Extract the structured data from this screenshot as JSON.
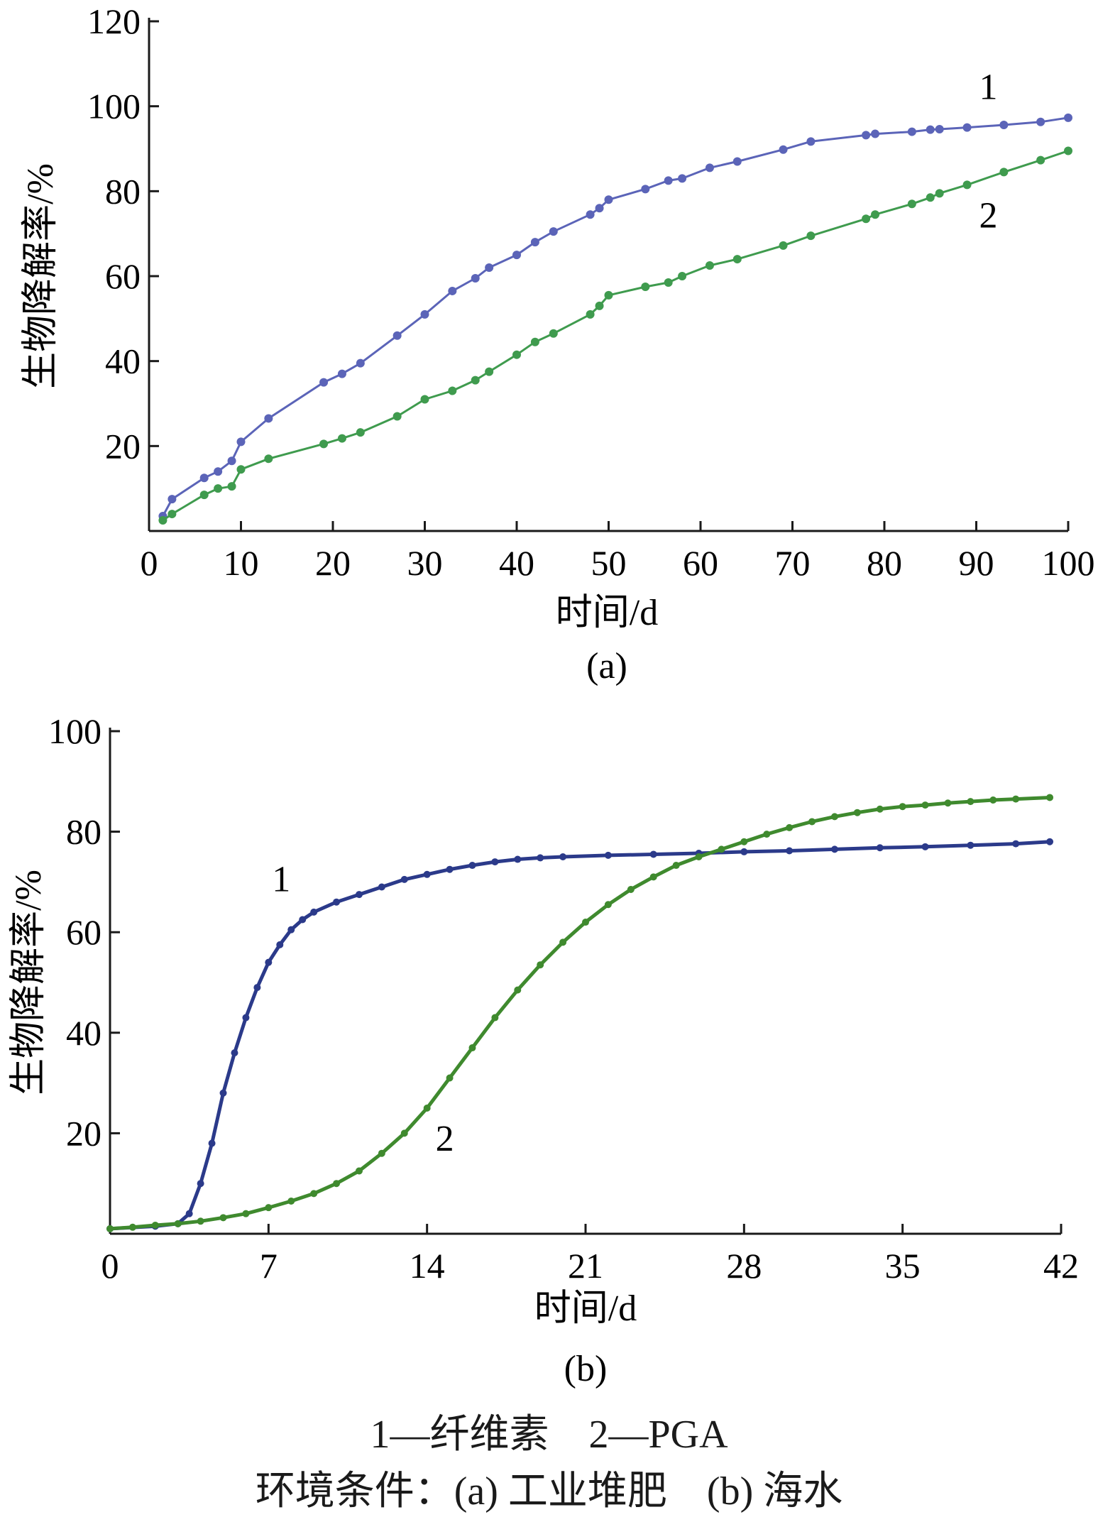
{
  "chart_data": [
    {
      "type": "line",
      "panel_label": "(a)",
      "xlabel": "时间/d",
      "ylabel": "生物降解率/%",
      "xlim": [
        0,
        100
      ],
      "ylim": [
        0,
        120
      ],
      "xticks": [
        "0",
        "10",
        "20",
        "30",
        "40",
        "50",
        "60",
        "70",
        "80",
        "90",
        "100"
      ],
      "yticks": [
        "20",
        "40",
        "60",
        "80",
        "100",
        "120"
      ],
      "grid": false,
      "series": [
        {
          "name": "1",
          "color": "#5b64b8",
          "markers": true,
          "points": [
            [
              1.5,
              3.5
            ],
            [
              2.5,
              7.5
            ],
            [
              6,
              12.5
            ],
            [
              7.5,
              14
            ],
            [
              9,
              16.5
            ],
            [
              10,
              21
            ],
            [
              13,
              26.5
            ],
            [
              19,
              35
            ],
            [
              21,
              37
            ],
            [
              23,
              39.5
            ],
            [
              27,
              46
            ],
            [
              30,
              51
            ],
            [
              33,
              56.5
            ],
            [
              35.5,
              59.5
            ],
            [
              37,
              62
            ],
            [
              40,
              65
            ],
            [
              42,
              68
            ],
            [
              44,
              70.5
            ],
            [
              48,
              74.5
            ],
            [
              49,
              76
            ],
            [
              50,
              78
            ],
            [
              54,
              80.5
            ],
            [
              56.5,
              82.5
            ],
            [
              58,
              83
            ],
            [
              61,
              85.5
            ],
            [
              64,
              87
            ],
            [
              69,
              89.8
            ],
            [
              72,
              91.7
            ],
            [
              78,
              93.2
            ],
            [
              79,
              93.5
            ],
            [
              83,
              94
            ],
            [
              85,
              94.5
            ],
            [
              86,
              94.6
            ],
            [
              89,
              95
            ],
            [
              93,
              95.6
            ],
            [
              97,
              96.3
            ],
            [
              100,
              97.3
            ]
          ]
        },
        {
          "name": "2",
          "color": "#3f9b4e",
          "markers": true,
          "points": [
            [
              1.5,
              2.5
            ],
            [
              2.5,
              4
            ],
            [
              6,
              8.5
            ],
            [
              7.5,
              10
            ],
            [
              9,
              10.5
            ],
            [
              10,
              14.5
            ],
            [
              13,
              17
            ],
            [
              19,
              20.5
            ],
            [
              21,
              21.8
            ],
            [
              23,
              23.2
            ],
            [
              27,
              27
            ],
            [
              30,
              31
            ],
            [
              33,
              33
            ],
            [
              35.5,
              35.5
            ],
            [
              37,
              37.5
            ],
            [
              40,
              41.5
            ],
            [
              42,
              44.5
            ],
            [
              44,
              46.5
            ],
            [
              48,
              51
            ],
            [
              49,
              53
            ],
            [
              50,
              55.5
            ],
            [
              54,
              57.5
            ],
            [
              56.5,
              58.5
            ],
            [
              58,
              60
            ],
            [
              61,
              62.5
            ],
            [
              64,
              64
            ],
            [
              69,
              67.2
            ],
            [
              72,
              69.5
            ],
            [
              78,
              73.5
            ],
            [
              79,
              74.5
            ],
            [
              83,
              77
            ],
            [
              85,
              78.5
            ],
            [
              86,
              79.5
            ],
            [
              89,
              81.5
            ],
            [
              93,
              84.5
            ],
            [
              97,
              87.3
            ],
            [
              100,
              89.5
            ]
          ]
        }
      ]
    },
    {
      "type": "line",
      "panel_label": "(b)",
      "xlabel": "时间/d",
      "ylabel": "生物降解率/%",
      "xlim": [
        0,
        42
      ],
      "ylim": [
        0,
        100
      ],
      "xticks": [
        "0",
        "7",
        "14",
        "21",
        "28",
        "35",
        "42"
      ],
      "yticks": [
        "20",
        "40",
        "60",
        "80",
        "100"
      ],
      "grid": false,
      "series": [
        {
          "name": "1",
          "color": "#2b3a8a",
          "markers": true,
          "points": [
            [
              0,
              1
            ],
            [
              2,
              1.5
            ],
            [
              3,
              2
            ],
            [
              3.5,
              4
            ],
            [
              4,
              10
            ],
            [
              4.5,
              18
            ],
            [
              5,
              28
            ],
            [
              5.5,
              36
            ],
            [
              6,
              43
            ],
            [
              6.5,
              49
            ],
            [
              7,
              54
            ],
            [
              7.5,
              57.5
            ],
            [
              8,
              60.5
            ],
            [
              8.5,
              62.5
            ],
            [
              9,
              64
            ],
            [
              10,
              66
            ],
            [
              11,
              67.5
            ],
            [
              12,
              69
            ],
            [
              13,
              70.5
            ],
            [
              14,
              71.5
            ],
            [
              15,
              72.5
            ],
            [
              16,
              73.3
            ],
            [
              17,
              74
            ],
            [
              18,
              74.5
            ],
            [
              19,
              74.8
            ],
            [
              20,
              75
            ],
            [
              22,
              75.3
            ],
            [
              24,
              75.5
            ],
            [
              26,
              75.7
            ],
            [
              28,
              76
            ],
            [
              30,
              76.2
            ],
            [
              32,
              76.5
            ],
            [
              34,
              76.8
            ],
            [
              36,
              77
            ],
            [
              38,
              77.3
            ],
            [
              40,
              77.6
            ],
            [
              41.5,
              78
            ]
          ]
        },
        {
          "name": "2",
          "color": "#3f8a2e",
          "markers": true,
          "points": [
            [
              0,
              1
            ],
            [
              1,
              1.3
            ],
            [
              2,
              1.7
            ],
            [
              3,
              2
            ],
            [
              4,
              2.5
            ],
            [
              5,
              3.2
            ],
            [
              6,
              4
            ],
            [
              7,
              5.2
            ],
            [
              8,
              6.5
            ],
            [
              9,
              8
            ],
            [
              10,
              10
            ],
            [
              11,
              12.5
            ],
            [
              12,
              16
            ],
            [
              13,
              20
            ],
            [
              14,
              25
            ],
            [
              15,
              31
            ],
            [
              16,
              37
            ],
            [
              17,
              43
            ],
            [
              18,
              48.5
            ],
            [
              19,
              53.5
            ],
            [
              20,
              58
            ],
            [
              21,
              62
            ],
            [
              22,
              65.5
            ],
            [
              23,
              68.5
            ],
            [
              24,
              71
            ],
            [
              25,
              73.3
            ],
            [
              26,
              75
            ],
            [
              27,
              76.5
            ],
            [
              28,
              78
            ],
            [
              29,
              79.5
            ],
            [
              30,
              80.8
            ],
            [
              31,
              82
            ],
            [
              32,
              83
            ],
            [
              33,
              83.8
            ],
            [
              34,
              84.5
            ],
            [
              35,
              85
            ],
            [
              36,
              85.3
            ],
            [
              37,
              85.7
            ],
            [
              38,
              86
            ],
            [
              39,
              86.3
            ],
            [
              40,
              86.5
            ],
            [
              41.5,
              86.8
            ]
          ]
        }
      ]
    }
  ],
  "caption": {
    "legend_line": "1—纤维素    2—PGA",
    "conditions_line": "环境条件：(a) 工业堆肥    (b) 海水"
  }
}
